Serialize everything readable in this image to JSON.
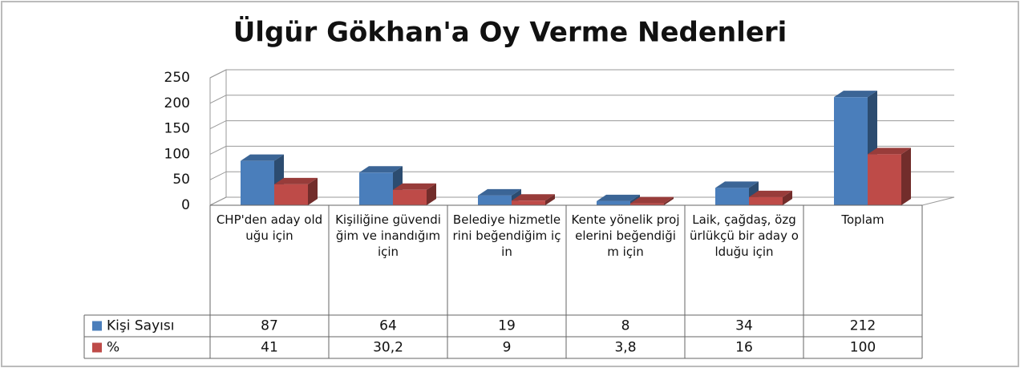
{
  "chart_data": {
    "type": "bar3d",
    "title": "Ülgür Gökhan'a Oy Verme Nedenleri",
    "categories": [
      "CHP'den aday olduğu için",
      "Kişiliğine güvendiğim ve inandığım için",
      "Belediye hizmetlerini beğendiğim için",
      "Kente yönelik projelerini beğendiğim için",
      "Laik, çağdaş, özgürlükçü bir aday olduğu için",
      "Toplam"
    ],
    "series": [
      {
        "name": "Kişi Sayısı",
        "color": "#4a7ebb",
        "values": [
          87,
          64,
          19,
          8,
          34,
          212
        ]
      },
      {
        "name": "%",
        "color": "#be4b48",
        "values": [
          41,
          30.2,
          9,
          3.8,
          16,
          100
        ],
        "value_labels": [
          "41",
          "30,2",
          "9",
          "3,8",
          "16",
          "100"
        ]
      }
    ],
    "ylim": [
      0,
      250
    ],
    "yticks": [
      0,
      50,
      100,
      150,
      200,
      250
    ],
    "grid": true,
    "legend": "table"
  }
}
